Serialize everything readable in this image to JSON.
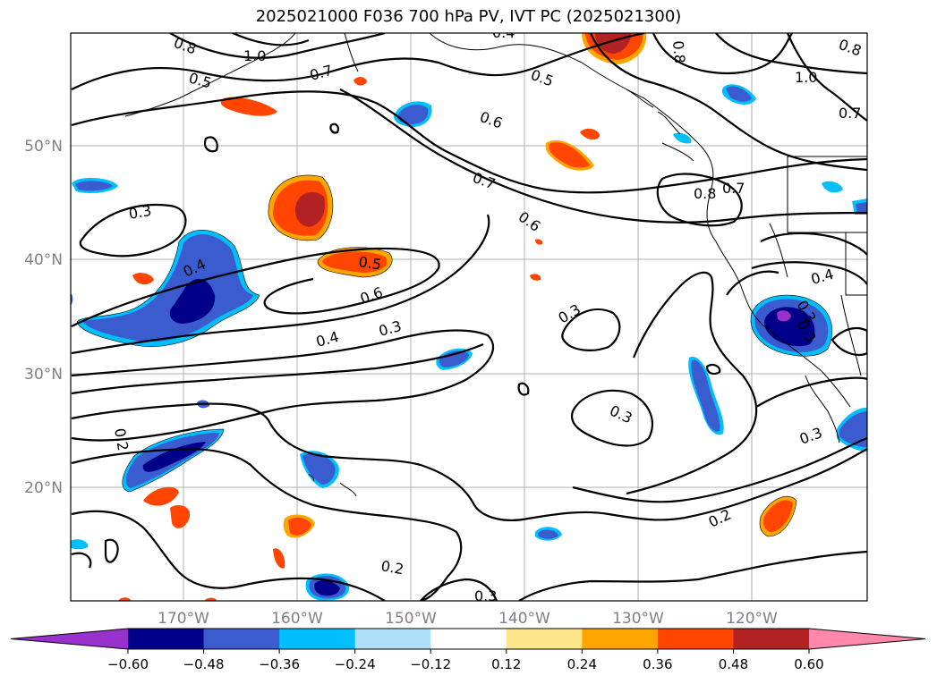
{
  "title": "2025021000 F036 700 hPa PV, IVT PC (2025021300)",
  "lat_labels": [
    "50°N",
    "40°N",
    "30°N",
    "20°N"
  ],
  "lon_labels": [
    "170°W",
    "160°W",
    "150°W",
    "140°W",
    "130°W",
    "120°W"
  ],
  "contour_labels": [
    "0.8",
    "1.0",
    "0.7",
    "0.5",
    "0.4",
    "0.5",
    "0.6",
    "0.7",
    "0.6",
    "0.8",
    "0.7",
    "0.3",
    "0.4",
    "0.5",
    "0.6",
    "0.4",
    "0.3",
    "0.3",
    "0.3",
    "0.2",
    "0.2",
    "0.3",
    "0.2",
    "0.4",
    "0.3",
    "1.0",
    "0.7",
    "0.8",
    "0.8",
    "0.3",
    "0.3"
  ],
  "colorbar": {
    "tick_labels": [
      "−0.60",
      "−0.48",
      "−0.36",
      "−0.24",
      "−0.12",
      "0.12",
      "0.24",
      "0.36",
      "0.48",
      "0.60"
    ],
    "colors": [
      "#9932cc",
      "#00008b",
      "#3a5ccf",
      "#00bfff",
      "#aee0fa",
      "#ffffff",
      "#fde68a",
      "#ffa500",
      "#ff4500",
      "#b22222",
      "#ff88aa"
    ]
  }
}
